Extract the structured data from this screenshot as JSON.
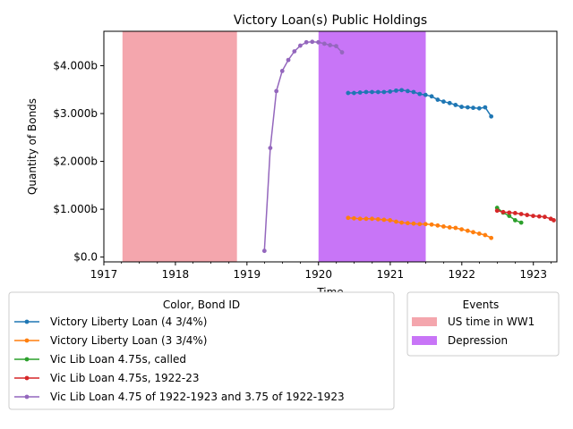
{
  "chart_data": {
    "type": "line",
    "title": "Victory Loan(s) Public Holdings",
    "xlabel": "Time",
    "ylabel": "Quantity of Bonds",
    "x_ticks": [
      "1917",
      "1918",
      "1919",
      "1920",
      "1921",
      "1922",
      "1923"
    ],
    "y_ticks": [
      "$0.0",
      "$1.000b",
      "$2.000b",
      "$3.000b",
      "$4.000b"
    ],
    "xlim": [
      "1917-01-01",
      "1923-05-01"
    ],
    "ylim": [
      -0.1,
      4.72
    ],
    "y_unit": "billions of dollars",
    "grid": false,
    "shaded_events": [
      {
        "label": "US time in WW1",
        "start": "1917-04-06",
        "end": "1918-11-11",
        "color": "#f4a6ad"
      },
      {
        "label": "Depression",
        "start": "1920-01-01",
        "end": "1921-07-01",
        "color": "#c875f7"
      }
    ],
    "series_legend_title": "Color, Bond ID",
    "events_legend_title": "Events",
    "series": [
      {
        "name": "Victory Liberty Loan (4 3/4%)",
        "color": "#1f77b4",
        "x": [
          "1920-05-31",
          "1920-06-30",
          "1920-07-31",
          "1920-08-31",
          "1920-09-30",
          "1920-10-31",
          "1920-11-30",
          "1920-12-31",
          "1921-01-31",
          "1921-02-28",
          "1921-03-31",
          "1921-04-30",
          "1921-05-31",
          "1921-06-30",
          "1921-07-31",
          "1921-08-31",
          "1921-09-30",
          "1921-10-31",
          "1921-11-30",
          "1921-12-31",
          "1922-01-31",
          "1922-02-28",
          "1922-03-31",
          "1922-04-30",
          "1922-05-31"
        ],
        "y": [
          3.43,
          3.43,
          3.44,
          3.45,
          3.45,
          3.45,
          3.45,
          3.46,
          3.48,
          3.49,
          3.47,
          3.45,
          3.41,
          3.39,
          3.36,
          3.29,
          3.25,
          3.22,
          3.18,
          3.14,
          3.13,
          3.12,
          3.11,
          3.13,
          2.94
        ]
      },
      {
        "name": "Victory Liberty Loan (3 3/4%)",
        "color": "#ff7f0e",
        "x": [
          "1920-05-31",
          "1920-06-30",
          "1920-07-31",
          "1920-08-31",
          "1920-09-30",
          "1920-10-31",
          "1920-11-30",
          "1920-12-31",
          "1921-01-31",
          "1921-02-28",
          "1921-03-31",
          "1921-04-30",
          "1921-05-31",
          "1921-06-30",
          "1921-07-31",
          "1921-08-31",
          "1921-09-30",
          "1921-10-31",
          "1921-11-30",
          "1921-12-31",
          "1922-01-31",
          "1922-02-28",
          "1922-03-31",
          "1922-04-30",
          "1922-05-31"
        ],
        "y": [
          0.82,
          0.81,
          0.8,
          0.8,
          0.8,
          0.79,
          0.78,
          0.77,
          0.74,
          0.72,
          0.71,
          0.7,
          0.69,
          0.69,
          0.68,
          0.66,
          0.64,
          0.62,
          0.61,
          0.58,
          0.55,
          0.52,
          0.49,
          0.46,
          0.4
        ]
      },
      {
        "name": "Vic Lib Loan 4.75s, called",
        "color": "#2ca02c",
        "x": [
          "1922-06-30",
          "1922-07-31",
          "1922-08-31",
          "1922-09-30",
          "1922-10-31"
        ],
        "y": [
          1.03,
          0.93,
          0.86,
          0.77,
          0.72
        ]
      },
      {
        "name": "Vic Lib Loan 4.75s, 1922-23",
        "color": "#d62728",
        "x": [
          "1922-06-30",
          "1922-07-31",
          "1922-08-31",
          "1922-09-30",
          "1922-10-31",
          "1922-11-30",
          "1922-12-31",
          "1923-01-31",
          "1923-02-28",
          "1923-03-31",
          "1923-04-15"
        ],
        "y": [
          0.97,
          0.94,
          0.93,
          0.92,
          0.9,
          0.88,
          0.86,
          0.85,
          0.84,
          0.8,
          0.77
        ]
      },
      {
        "name": "Vic Lib Loan 4.75 of 1922-1923 and 3.75 of 1922-1923",
        "color": "#9467bd",
        "x": [
          "1919-03-31",
          "1919-04-30",
          "1919-05-31",
          "1919-06-30",
          "1919-07-31",
          "1919-08-31",
          "1919-09-30",
          "1919-10-31",
          "1919-11-30",
          "1919-12-31",
          "1920-01-31",
          "1920-02-29",
          "1920-03-31",
          "1920-04-30"
        ],
        "y": [
          0.13,
          2.28,
          3.47,
          3.89,
          4.12,
          4.3,
          4.42,
          4.49,
          4.5,
          4.49,
          4.46,
          4.43,
          4.41,
          4.28
        ]
      }
    ]
  }
}
